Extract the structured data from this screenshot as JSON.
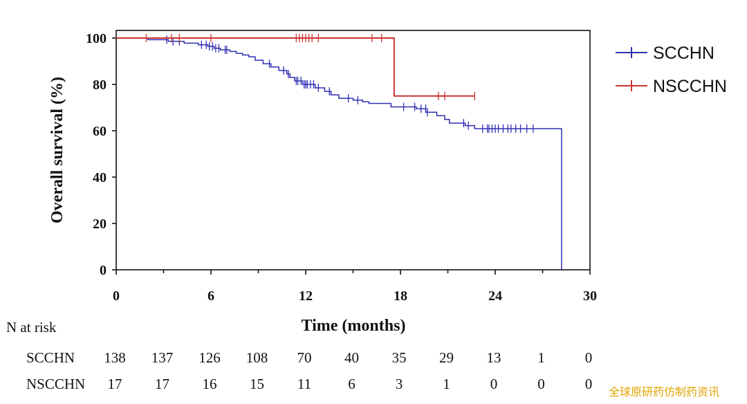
{
  "chart_data": {
    "type": "line",
    "subtype": "kaplan-meier",
    "ylabel": "Overall survival (%)",
    "xlabel": "Time (months)",
    "xlim": [
      0,
      30
    ],
    "ylim": [
      0,
      100
    ],
    "xticks": [
      0,
      6,
      12,
      18,
      24,
      30
    ],
    "yticks": [
      0,
      20,
      40,
      60,
      80,
      100
    ],
    "grid": false,
    "legend_position": "right",
    "series": [
      {
        "name": "SCCHN",
        "color": "#2f2fb3",
        "steps": [
          [
            0,
            100
          ],
          [
            2,
            99.3
          ],
          [
            3.3,
            98.6
          ],
          [
            4.3,
            97.8
          ],
          [
            5.2,
            97.1
          ],
          [
            5.8,
            96.4
          ],
          [
            6.2,
            95.6
          ],
          [
            6.6,
            94.9
          ],
          [
            7.2,
            94.2
          ],
          [
            7.6,
            93.4
          ],
          [
            8.0,
            92.7
          ],
          [
            8.4,
            91.9
          ],
          [
            8.8,
            90.4
          ],
          [
            9.3,
            88.9
          ],
          [
            9.8,
            87.5
          ],
          [
            10.3,
            86.0
          ],
          [
            10.8,
            84.5
          ],
          [
            11.0,
            83.0
          ],
          [
            11.3,
            81.5
          ],
          [
            11.8,
            80.0
          ],
          [
            12.6,
            78.5
          ],
          [
            13.2,
            77.0
          ],
          [
            13.6,
            75.5
          ],
          [
            14.1,
            74.0
          ],
          [
            15.0,
            73.2
          ],
          [
            15.6,
            72.5
          ],
          [
            16.0,
            71.8
          ],
          [
            17.4,
            70.3
          ],
          [
            19.0,
            69.5
          ],
          [
            19.6,
            68.0
          ],
          [
            20.3,
            66.5
          ],
          [
            20.8,
            64.9
          ],
          [
            21.1,
            63.3
          ],
          [
            22.1,
            62.2
          ],
          [
            22.7,
            60.9
          ],
          [
            28.2,
            0
          ]
        ],
        "censors": [
          [
            3.2,
            99.3
          ],
          [
            3.6,
            98.6
          ],
          [
            4.0,
            98.6
          ],
          [
            5.4,
            97.1
          ],
          [
            5.7,
            97.1
          ],
          [
            5.9,
            96.4
          ],
          [
            6.1,
            96.4
          ],
          [
            6.3,
            95.6
          ],
          [
            6.5,
            95.6
          ],
          [
            6.9,
            94.9
          ],
          [
            7.0,
            94.9
          ],
          [
            9.7,
            88.9
          ],
          [
            10.6,
            86.0
          ],
          [
            10.9,
            84.5
          ],
          [
            11.4,
            81.5
          ],
          [
            11.5,
            81.5
          ],
          [
            11.7,
            81.5
          ],
          [
            11.9,
            80.0
          ],
          [
            12.0,
            80.0
          ],
          [
            12.1,
            80.0
          ],
          [
            12.3,
            80.0
          ],
          [
            12.5,
            80.0
          ],
          [
            12.8,
            78.5
          ],
          [
            13.5,
            77.0
          ],
          [
            14.7,
            74.0
          ],
          [
            15.3,
            73.2
          ],
          [
            18.2,
            70.3
          ],
          [
            18.9,
            70.3
          ],
          [
            19.3,
            69.5
          ],
          [
            19.6,
            69.5
          ],
          [
            19.7,
            68.0
          ],
          [
            22.0,
            63.3
          ],
          [
            22.3,
            62.2
          ],
          [
            23.2,
            60.9
          ],
          [
            23.5,
            60.9
          ],
          [
            23.6,
            60.9
          ],
          [
            23.8,
            60.9
          ],
          [
            24.0,
            60.9
          ],
          [
            24.2,
            60.9
          ],
          [
            24.5,
            60.9
          ],
          [
            24.8,
            60.9
          ],
          [
            25.0,
            60.9
          ],
          [
            25.3,
            60.9
          ],
          [
            25.6,
            60.9
          ],
          [
            26.0,
            60.9
          ],
          [
            26.4,
            60.9
          ]
        ]
      },
      {
        "name": "NSCCHN",
        "color": "#cc3333",
        "steps": [
          [
            0,
            100
          ],
          [
            17.6,
            75.0
          ],
          [
            22.7,
            75.0
          ]
        ],
        "censors": [
          [
            1.9,
            100
          ],
          [
            3.5,
            100
          ],
          [
            4.0,
            100
          ],
          [
            6.0,
            100
          ],
          [
            11.4,
            100
          ],
          [
            11.6,
            100
          ],
          [
            11.8,
            100
          ],
          [
            12.0,
            100
          ],
          [
            12.2,
            100
          ],
          [
            12.4,
            100
          ],
          [
            12.8,
            100
          ],
          [
            16.2,
            100
          ],
          [
            16.8,
            100
          ],
          [
            20.4,
            75.0
          ],
          [
            20.8,
            75.0
          ],
          [
            22.7,
            75.0
          ]
        ]
      }
    ],
    "risk_table": {
      "title": "N at risk",
      "times": [
        0,
        3,
        6,
        9,
        12,
        15,
        18,
        21,
        24,
        27,
        30
      ],
      "rows": [
        {
          "label": "SCCHN",
          "values": [
            "138",
            "137",
            "126",
            "108",
            "70",
            "40",
            "35",
            "29",
            "13",
            "1",
            "0"
          ]
        },
        {
          "label": "NSCCHN",
          "values": [
            "17",
            "17",
            "16",
            "15",
            "11",
            "6",
            "3",
            "1",
            "0",
            "0",
            "0"
          ]
        }
      ]
    }
  },
  "watermark": "全球原研药仿制药资讯"
}
